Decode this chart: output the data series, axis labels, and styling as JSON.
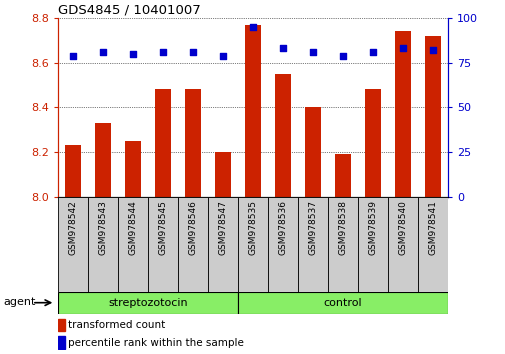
{
  "title": "GDS4845 / 10401007",
  "categories": [
    "GSM978542",
    "GSM978543",
    "GSM978544",
    "GSM978545",
    "GSM978546",
    "GSM978547",
    "GSM978535",
    "GSM978536",
    "GSM978537",
    "GSM978538",
    "GSM978539",
    "GSM978540",
    "GSM978541"
  ],
  "bar_values": [
    8.23,
    8.33,
    8.25,
    8.48,
    8.48,
    8.2,
    8.77,
    8.55,
    8.4,
    8.19,
    8.48,
    8.74,
    8.72
  ],
  "bar_bottom": 8.0,
  "percentile_values": [
    79,
    81,
    80,
    81,
    81,
    79,
    95,
    83,
    81,
    79,
    81,
    83,
    82
  ],
  "bar_color": "#cc2200",
  "dot_color": "#0000cc",
  "ylim_left": [
    8.0,
    8.8
  ],
  "ylim_right": [
    0,
    100
  ],
  "yticks_left": [
    8.0,
    8.2,
    8.4,
    8.6,
    8.8
  ],
  "yticks_right": [
    0,
    25,
    50,
    75,
    100
  ],
  "groups": [
    {
      "label": "streptozotocin",
      "start": 0,
      "end": 6
    },
    {
      "label": "control",
      "start": 6,
      "end": 13
    }
  ],
  "group_color": "#88ee66",
  "group_row_label": "agent",
  "legend": [
    {
      "label": "transformed count",
      "color": "#cc2200"
    },
    {
      "label": "percentile rank within the sample",
      "color": "#0000cc"
    }
  ],
  "xtick_bg": "#cccccc",
  "bar_width": 0.55
}
